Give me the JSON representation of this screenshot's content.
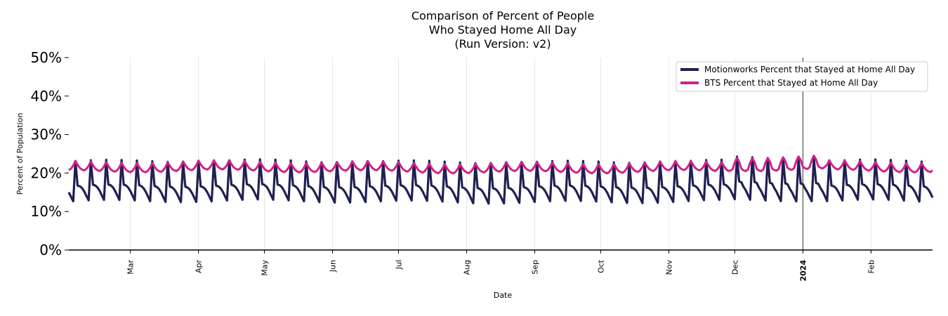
{
  "chart_data": {
    "type": "line",
    "title": [
      "Comparison of Percent of People",
      "Who Stayed Home All Day",
      "(Run Version: v2)"
    ],
    "xlabel": "Date",
    "ylabel": "Percent of Population",
    "ylim": [
      0,
      50
    ],
    "yticks": [
      "0%",
      "10%",
      "20%",
      "30%",
      "40%",
      "50%"
    ],
    "x_range": [
      "2023-02-01",
      "2024-02-29"
    ],
    "xticks": [
      {
        "label": "Mar",
        "date": "2023-03-01",
        "bold": false
      },
      {
        "label": "Apr",
        "date": "2023-04-01",
        "bold": false
      },
      {
        "label": "May",
        "date": "2023-05-01",
        "bold": false
      },
      {
        "label": "Jun",
        "date": "2023-06-01",
        "bold": false
      },
      {
        "label": "Jul",
        "date": "2023-07-01",
        "bold": false
      },
      {
        "label": "Aug",
        "date": "2023-08-01",
        "bold": false
      },
      {
        "label": "Sep",
        "date": "2023-09-01",
        "bold": false
      },
      {
        "label": "Oct",
        "date": "2023-10-01",
        "bold": false
      },
      {
        "label": "Nov",
        "date": "2023-11-01",
        "bold": false
      },
      {
        "label": "Dec",
        "date": "2023-12-01",
        "bold": false
      },
      {
        "label": "2024",
        "date": "2024-01-01",
        "bold": true
      },
      {
        "label": "Feb",
        "date": "2024-02-01",
        "bold": false
      }
    ],
    "vline_date": "2024-01-01",
    "legend_position": "top-right",
    "series": [
      {
        "name": "Motionworks Percent that Stayed at Home All Day",
        "color": "#1f2152",
        "weekly_pattern": [
          23.0,
          16.6,
          16.4,
          15.9,
          15.0,
          13.8,
          12.6
        ],
        "first_weekday_offset": 4,
        "notes": "weekly sawtooth between ~12.5% and ~23%, peaks up to ~25% around late Dec 2023"
      },
      {
        "name": "BTS Percent that Stayed at Home All Day",
        "color": "#d3208a",
        "weekly_pattern": [
          22.8,
          21.8,
          21.0,
          20.6,
          20.4,
          20.8,
          21.6
        ],
        "first_weekday_offset": 4,
        "notes": "oscillates ~19.5%-23% throughout"
      }
    ]
  },
  "legend": {
    "entries": [
      {
        "label": "Motionworks Percent that Stayed at Home All Day",
        "color": "#1f2152"
      },
      {
        "label": "BTS Percent that Stayed at Home All Day",
        "color": "#d3208a"
      }
    ]
  }
}
